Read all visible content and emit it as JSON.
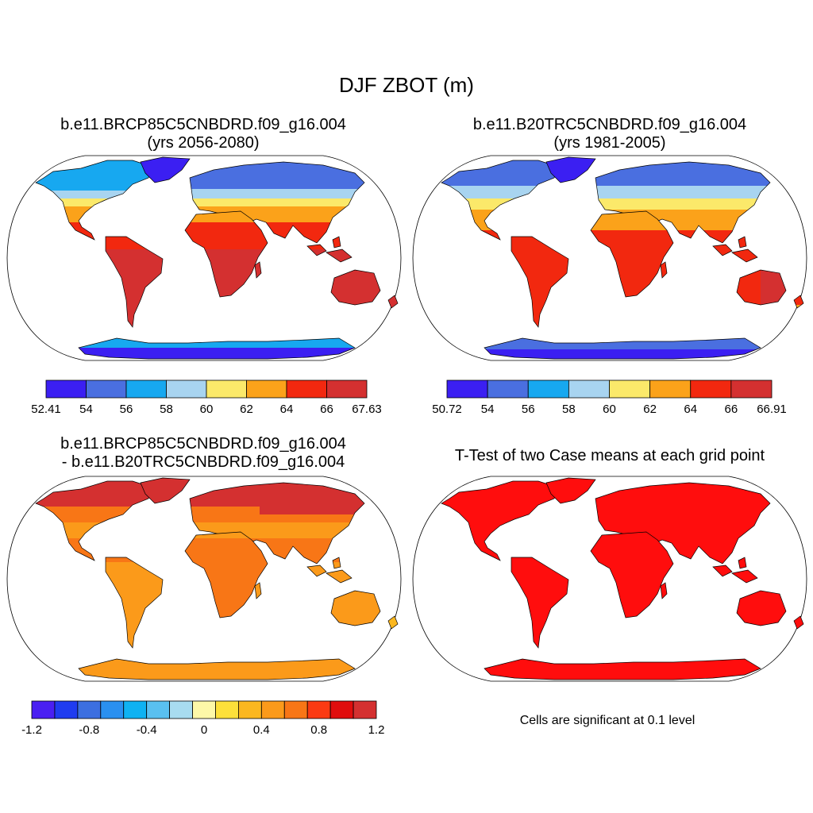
{
  "page": {
    "title": "DJF ZBOT (m)"
  },
  "panels": {
    "top_left": {
      "title_line1": "b.e11.BRCP85C5CNBDRD.f09_g16.004",
      "title_line2": "(yrs 2056-2080)",
      "colorbar": {
        "colors": [
          "#3b1ff2",
          "#4a6fe0",
          "#17a8f0",
          "#a8d4f0",
          "#fbe96a",
          "#fba21a",
          "#f2280f",
          "#d43030"
        ],
        "labels": [
          "52.41",
          "54",
          "56",
          "58",
          "60",
          "62",
          "64",
          "66",
          "67.63"
        ]
      }
    },
    "top_right": {
      "title_line1": "b.e11.B20TRC5CNBDRD.f09_g16.004",
      "title_line2": "(yrs 1981-2005)",
      "colorbar": {
        "colors": [
          "#3b1ff2",
          "#4a6fe0",
          "#17a8f0",
          "#a8d4f0",
          "#fbe96a",
          "#fba21a",
          "#f2280f",
          "#d43030"
        ],
        "labels": [
          "50.72",
          "54",
          "56",
          "58",
          "60",
          "62",
          "64",
          "66",
          "66.91"
        ]
      }
    },
    "bottom_left": {
      "title_line1": "b.e11.BRCP85C5CNBDRD.f09_g16.004",
      "title_line2": "- b.e11.B20TRC5CNBDRD.f09_g16.004",
      "colorbar": {
        "colors": [
          "#4a1ff2",
          "#1f3cf0",
          "#3c6fe0",
          "#2a90f0",
          "#0fb2f2",
          "#5ac0f0",
          "#a8dcf0",
          "#fdf8a8",
          "#fde03a",
          "#fbb71f",
          "#fb9a1a",
          "#f87616",
          "#fb3a12",
          "#e00d0d",
          "#d43030"
        ],
        "labels": [
          "-1.2",
          "-0.8",
          "-0.4",
          "0",
          "0.4",
          "0.8",
          "1.2"
        ]
      }
    },
    "bottom_right": {
      "title_line1": "T-Test of two Case means at each grid point",
      "note": "Cells are significant at 0.1 level",
      "fill_color": "#ff0d0d"
    }
  }
}
